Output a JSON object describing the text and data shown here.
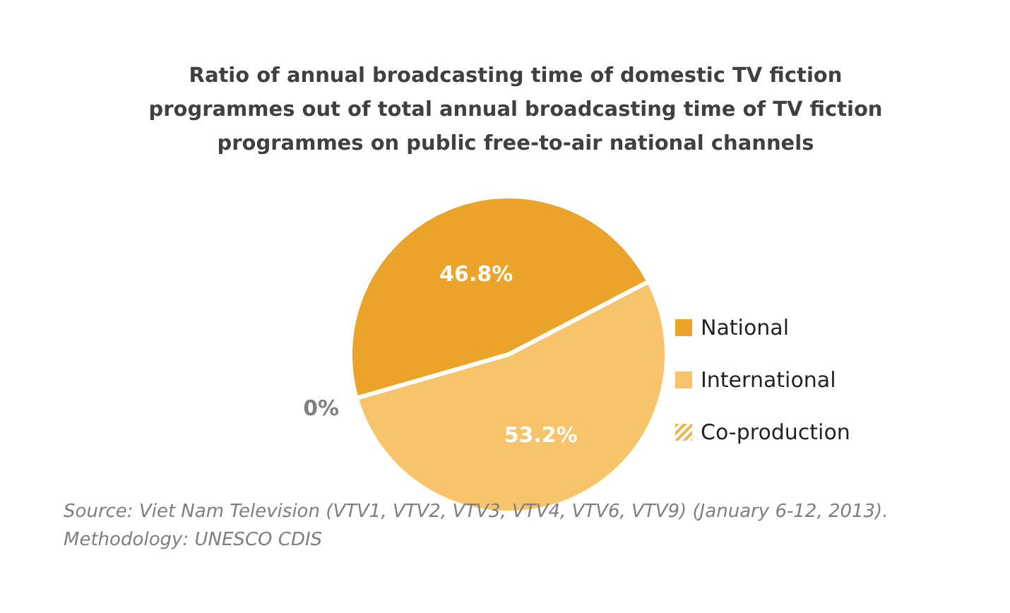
{
  "chart_data": {
    "type": "pie",
    "title": "Ratio of annual broadcasting time of domestic TV fiction programmes out of total annual broadcasting time of TV fiction programmes on public free-to-air national channels",
    "categories": [
      "National",
      "International",
      "Co-production"
    ],
    "values": [
      46.8,
      53.2,
      0
    ],
    "colors": [
      "#eca32a",
      "#f7c46c",
      "#f0b24a"
    ],
    "value_labels": [
      "46.8%",
      "53.2%",
      "0%"
    ],
    "legend": "right",
    "annotations": [
      "Source: Viet Nam Television (VTV1, VTV2, VTV3, VTV4, VTV6, VTV9) (January 6-12, 2013).",
      "Methodology: UNESCO CDIS"
    ]
  }
}
